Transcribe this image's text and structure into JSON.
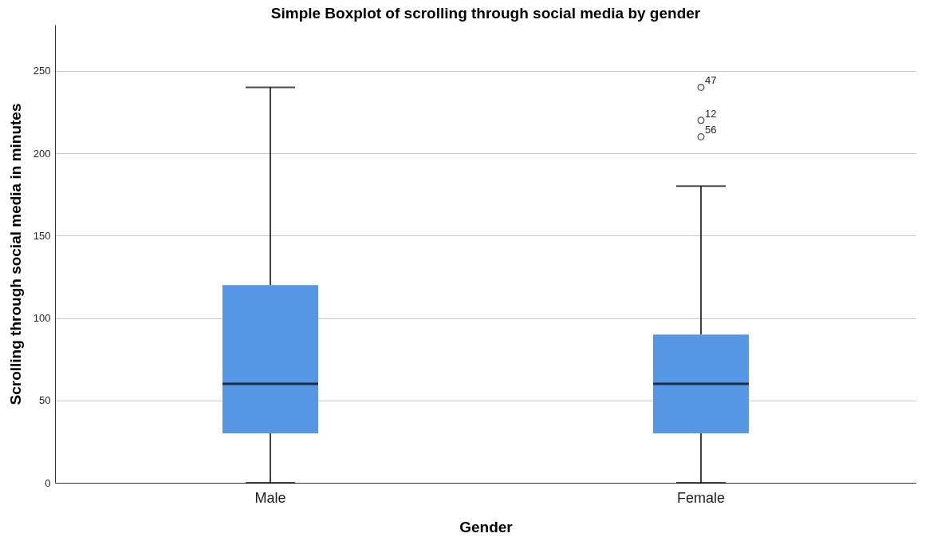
{
  "chart_data": {
    "type": "box",
    "title": "Simple Boxplot of scrolling through social media by gender",
    "xlabel": "Gender",
    "ylabel": "Scrolling through social media in minutes",
    "categories": [
      "Male",
      "Female"
    ],
    "series": [
      {
        "color": "#5596e5",
        "boxes": [
          {
            "low": 0,
            "q1": 30,
            "median": 60,
            "q3": 120,
            "high": 240
          },
          {
            "low": 0,
            "q1": 30,
            "median": 60,
            "q3": 90,
            "high": 180,
            "outliers": [
              240,
              220,
              210
            ]
          }
        ]
      }
    ],
    "ylim": [
      0,
      278
    ],
    "yticks": [
      0,
      50,
      100,
      150,
      200,
      250
    ],
    "grid": "y",
    "annotations": [
      "47",
      "12",
      "56"
    ]
  }
}
